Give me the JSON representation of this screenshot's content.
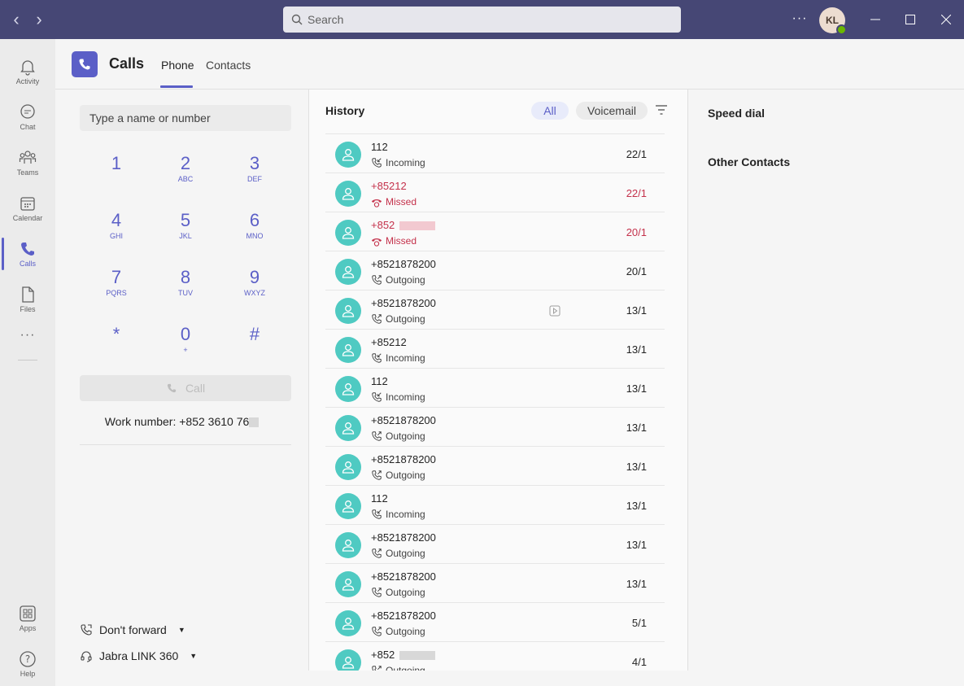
{
  "titlebar": {
    "search_placeholder": "Search",
    "avatar_initials": "KL",
    "more": "···"
  },
  "rail": {
    "items": [
      {
        "label": "Activity",
        "icon": "bell-icon"
      },
      {
        "label": "Chat",
        "icon": "chat-icon"
      },
      {
        "label": "Teams",
        "icon": "teams-icon"
      },
      {
        "label": "Calendar",
        "icon": "calendar-icon"
      },
      {
        "label": "Calls",
        "icon": "phone-icon"
      },
      {
        "label": "Files",
        "icon": "file-icon"
      }
    ],
    "more": "···",
    "apps": "Apps",
    "help": "Help"
  },
  "header": {
    "title": "Calls",
    "tabs": [
      "Phone",
      "Contacts"
    ]
  },
  "dialpad": {
    "placeholder": "Type a name or number",
    "keys": [
      {
        "d": "1",
        "l": ""
      },
      {
        "d": "2",
        "l": "ABC"
      },
      {
        "d": "3",
        "l": "DEF"
      },
      {
        "d": "4",
        "l": "GHI"
      },
      {
        "d": "5",
        "l": "JKL"
      },
      {
        "d": "6",
        "l": "MNO"
      },
      {
        "d": "7",
        "l": "PQRS"
      },
      {
        "d": "8",
        "l": "TUV"
      },
      {
        "d": "9",
        "l": "WXYZ"
      },
      {
        "d": "*",
        "l": ""
      },
      {
        "d": "0",
        "l": "+"
      },
      {
        "d": "#",
        "l": ""
      }
    ],
    "call_label": "Call",
    "work_number": "Work number: +852 3610 76",
    "forward_label": "Don't forward",
    "device_label": "Jabra LINK 360"
  },
  "history": {
    "title": "History",
    "filters": [
      "All",
      "Voicemail"
    ],
    "rows": [
      {
        "number": "112",
        "status": "Incoming",
        "date": "22/1",
        "missed": false
      },
      {
        "number": "+85212",
        "status": "Missed",
        "date": "22/1",
        "missed": true
      },
      {
        "number": "+852",
        "status": "Missed",
        "date": "20/1",
        "missed": true
      },
      {
        "number": "+8521878200",
        "status": "Outgoing",
        "date": "20/1",
        "missed": false
      },
      {
        "number": "+8521878200",
        "status": "Outgoing",
        "date": "13/1",
        "missed": false
      },
      {
        "number": "+85212",
        "status": "Incoming",
        "date": "13/1",
        "missed": false
      },
      {
        "number": "112",
        "status": "Incoming",
        "date": "13/1",
        "missed": false
      },
      {
        "number": "+8521878200",
        "status": "Outgoing",
        "date": "13/1",
        "missed": false
      },
      {
        "number": "+8521878200",
        "status": "Outgoing",
        "date": "13/1",
        "missed": false
      },
      {
        "number": "112",
        "status": "Incoming",
        "date": "13/1",
        "missed": false
      },
      {
        "number": "+8521878200",
        "status": "Outgoing",
        "date": "13/1",
        "missed": false
      },
      {
        "number": "+8521878200",
        "status": "Outgoing",
        "date": "13/1",
        "missed": false
      },
      {
        "number": "+8521878200",
        "status": "Outgoing",
        "date": "5/1",
        "missed": false
      },
      {
        "number": "+852",
        "status": "Outgoing",
        "date": "4/1",
        "missed": false
      }
    ]
  },
  "side": {
    "speed_dial": "Speed dial",
    "other_contacts": "Other Contacts"
  },
  "colors": {
    "titlebar": "#464775",
    "accent": "#5b5fc7",
    "avatar": "#4fcac2",
    "missed": "#c4314b"
  }
}
